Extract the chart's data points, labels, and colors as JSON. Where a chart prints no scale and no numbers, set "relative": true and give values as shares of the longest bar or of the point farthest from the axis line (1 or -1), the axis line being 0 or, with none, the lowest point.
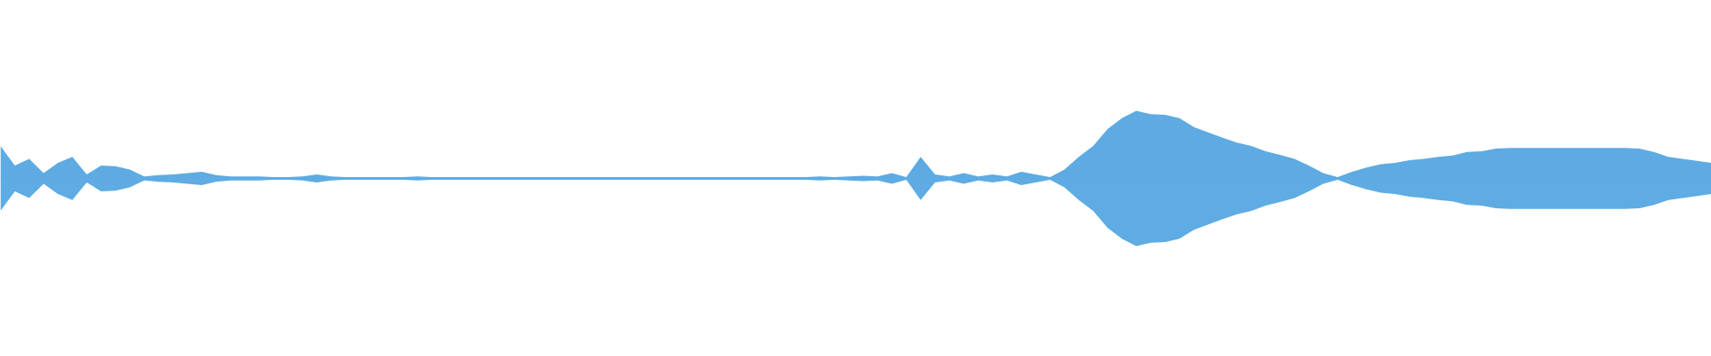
{
  "chart_data": {
    "type": "area",
    "relative": true,
    "ref_lines": [
      {
        "axis": "y",
        "value": 0,
        "color": "#5dabe2"
      }
    ],
    "categories": [
      null,
      null,
      null,
      null,
      null,
      null,
      null,
      null,
      null,
      null,
      null,
      null,
      null,
      null,
      null,
      null,
      null,
      null,
      null,
      null,
      null,
      null,
      null,
      null,
      null,
      null,
      null,
      null,
      null,
      null,
      null,
      null,
      null,
      null,
      null,
      null,
      null,
      null,
      null,
      null,
      null,
      null,
      null,
      null,
      null,
      null,
      null,
      null,
      null,
      null,
      null,
      null,
      null,
      null,
      null,
      null,
      null,
      null,
      null,
      null,
      null,
      null,
      null,
      null,
      null,
      null,
      null,
      null,
      null,
      null,
      null,
      null,
      null,
      null,
      null,
      null,
      null,
      null,
      null,
      null,
      null,
      null,
      null,
      null,
      null,
      null,
      null,
      null,
      null,
      null,
      null,
      null,
      null,
      null,
      null,
      null,
      null,
      null,
      null,
      null,
      null,
      null,
      null,
      null,
      null,
      null,
      null,
      null,
      null,
      null,
      null,
      null,
      null,
      null,
      null,
      null,
      null,
      null,
      null,
      null
    ],
    "series": [
      {
        "color": "#5dabe2",
        "values": [
          0.48,
          0.19,
          0.29,
          0.08,
          0.23,
          0.32,
          0.06,
          0.19,
          0.18,
          0.13,
          0.03,
          0.05,
          0.06,
          0.08,
          0.1,
          0.05,
          0.03,
          0.03,
          0.03,
          0.02,
          0.02,
          0.03,
          0.06,
          0.03,
          0.02,
          0.02,
          0.02,
          0.02,
          0.02,
          0.03,
          0.02,
          0.02,
          0.02,
          0.02,
          0.02,
          0.02,
          0.02,
          0.02,
          0.02,
          0.02,
          0.02,
          0.02,
          0.02,
          0.02,
          0.02,
          0.02,
          0.02,
          0.02,
          0.02,
          0.02,
          0.02,
          0.02,
          0.02,
          0.02,
          0.02,
          0.02,
          0.02,
          0.03,
          0.02,
          0.03,
          0.04,
          0.03,
          0.08,
          0.02,
          0.32,
          0.06,
          0.03,
          0.08,
          0.03,
          0.06,
          0.03,
          0.1,
          0.06,
          0.02,
          0.13,
          0.32,
          0.48,
          0.73,
          0.89,
          1,
          0.95,
          0.94,
          0.89,
          0.76,
          0.68,
          0.6,
          0.53,
          0.48,
          0.4,
          0.35,
          0.29,
          0.19,
          0.08,
          0.02,
          0.1,
          0.16,
          0.21,
          0.23,
          0.27,
          0.29,
          0.32,
          0.34,
          0.39,
          0.4,
          0.44,
          0.45,
          0.45,
          0.45,
          0.45,
          0.45,
          0.45,
          0.45,
          0.45,
          0.45,
          0.44,
          0.39,
          0.32,
          0.29,
          0.26,
          0.23
        ]
      },
      {
        "color": "#5eace3",
        "values": [
          -0.48,
          -0.19,
          -0.29,
          -0.08,
          -0.23,
          -0.32,
          -0.06,
          -0.19,
          -0.18,
          -0.13,
          -0.03,
          -0.05,
          -0.06,
          -0.08,
          -0.1,
          -0.05,
          -0.03,
          -0.03,
          -0.03,
          -0.02,
          -0.02,
          -0.03,
          -0.06,
          -0.03,
          -0.02,
          -0.02,
          -0.02,
          -0.02,
          -0.02,
          -0.03,
          -0.02,
          -0.02,
          -0.02,
          -0.02,
          -0.02,
          -0.02,
          -0.02,
          -0.02,
          -0.02,
          -0.02,
          -0.02,
          -0.02,
          -0.02,
          -0.02,
          -0.02,
          -0.02,
          -0.02,
          -0.02,
          -0.02,
          -0.02,
          -0.02,
          -0.02,
          -0.02,
          -0.02,
          -0.02,
          -0.02,
          -0.02,
          -0.03,
          -0.02,
          -0.03,
          -0.04,
          -0.03,
          -0.08,
          -0.02,
          -0.32,
          -0.06,
          -0.03,
          -0.08,
          -0.03,
          -0.06,
          -0.03,
          -0.1,
          -0.06,
          -0.02,
          -0.13,
          -0.32,
          -0.48,
          -0.73,
          -0.89,
          -1,
          -0.95,
          -0.94,
          -0.89,
          -0.76,
          -0.68,
          -0.6,
          -0.53,
          -0.48,
          -0.4,
          -0.35,
          -0.29,
          -0.19,
          -0.08,
          -0.02,
          -0.1,
          -0.16,
          -0.21,
          -0.23,
          -0.27,
          -0.29,
          -0.32,
          -0.34,
          -0.39,
          -0.4,
          -0.44,
          -0.45,
          -0.45,
          -0.45,
          -0.45,
          -0.45,
          -0.45,
          -0.45,
          -0.45,
          -0.45,
          -0.44,
          -0.39,
          -0.32,
          -0.29,
          -0.26,
          -0.23
        ]
      }
    ]
  }
}
